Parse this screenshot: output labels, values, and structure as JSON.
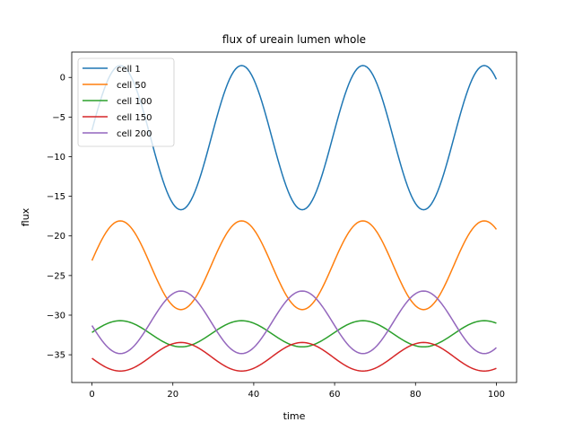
{
  "chart_data": {
    "type": "line",
    "title": "flux of ureain lumen whole",
    "xlabel": "time",
    "ylabel": "flux",
    "xlim": [
      -5,
      105
    ],
    "ylim": [
      -38.5,
      3.2
    ],
    "xticks": [
      0,
      20,
      40,
      60,
      80,
      100
    ],
    "yticks": [
      0,
      -5,
      -10,
      -15,
      -20,
      -25,
      -30,
      -35
    ],
    "grid": false,
    "legend_position": "top-left",
    "series": [
      {
        "name": "cell 1",
        "color": "#1f77b4",
        "mean": -7.6,
        "amplitude": 9.1,
        "period": 30,
        "phase_peak": 7,
        "x": [
          0,
          7,
          22,
          37,
          52,
          67,
          82,
          97,
          100
        ],
        "y": [
          -7.5,
          1.5,
          -16.7,
          1.5,
          -16.7,
          1.5,
          -16.7,
          1.5,
          0
        ]
      },
      {
        "name": "cell 50",
        "color": "#ff7f0e",
        "mean": -23.7,
        "amplitude": 5.6,
        "period": 30,
        "phase_peak": 7,
        "x": [
          0,
          7,
          22,
          37,
          52,
          67,
          82,
          97,
          100
        ],
        "y": [
          -23.6,
          -18.1,
          -29.3,
          -18.1,
          -29.3,
          -18.1,
          -29.3,
          -18.1,
          -18.9
        ]
      },
      {
        "name": "cell 100",
        "color": "#2ca02c",
        "mean": -32.35,
        "amplitude": 1.65,
        "period": 30,
        "phase_peak": 7,
        "x": [
          0,
          7,
          22,
          37,
          52,
          67,
          82,
          97,
          100
        ],
        "y": [
          -32.7,
          -30.7,
          -34.0,
          -30.7,
          -34.0,
          -30.7,
          -34.0,
          -30.7,
          -31.0
        ]
      },
      {
        "name": "cell 150",
        "color": "#d62728",
        "mean": -35.25,
        "amplitude": 1.8,
        "period": 30,
        "phase_peak": 22,
        "x": [
          0,
          7,
          22,
          37,
          52,
          67,
          82,
          97,
          100
        ],
        "y": [
          -35.6,
          -37.1,
          -33.5,
          -37.1,
          -33.5,
          -37.1,
          -33.5,
          -37.1,
          -36.9
        ]
      },
      {
        "name": "cell 200",
        "color": "#9467bd",
        "mean": -30.9,
        "amplitude": 3.95,
        "period": 30,
        "phase_peak": 22,
        "x": [
          0,
          7,
          22,
          37,
          52,
          67,
          82,
          97,
          100
        ],
        "y": [
          -31.0,
          -34.8,
          -26.9,
          -34.8,
          -26.9,
          -34.8,
          -26.9,
          -34.8,
          -34.3
        ]
      }
    ]
  }
}
